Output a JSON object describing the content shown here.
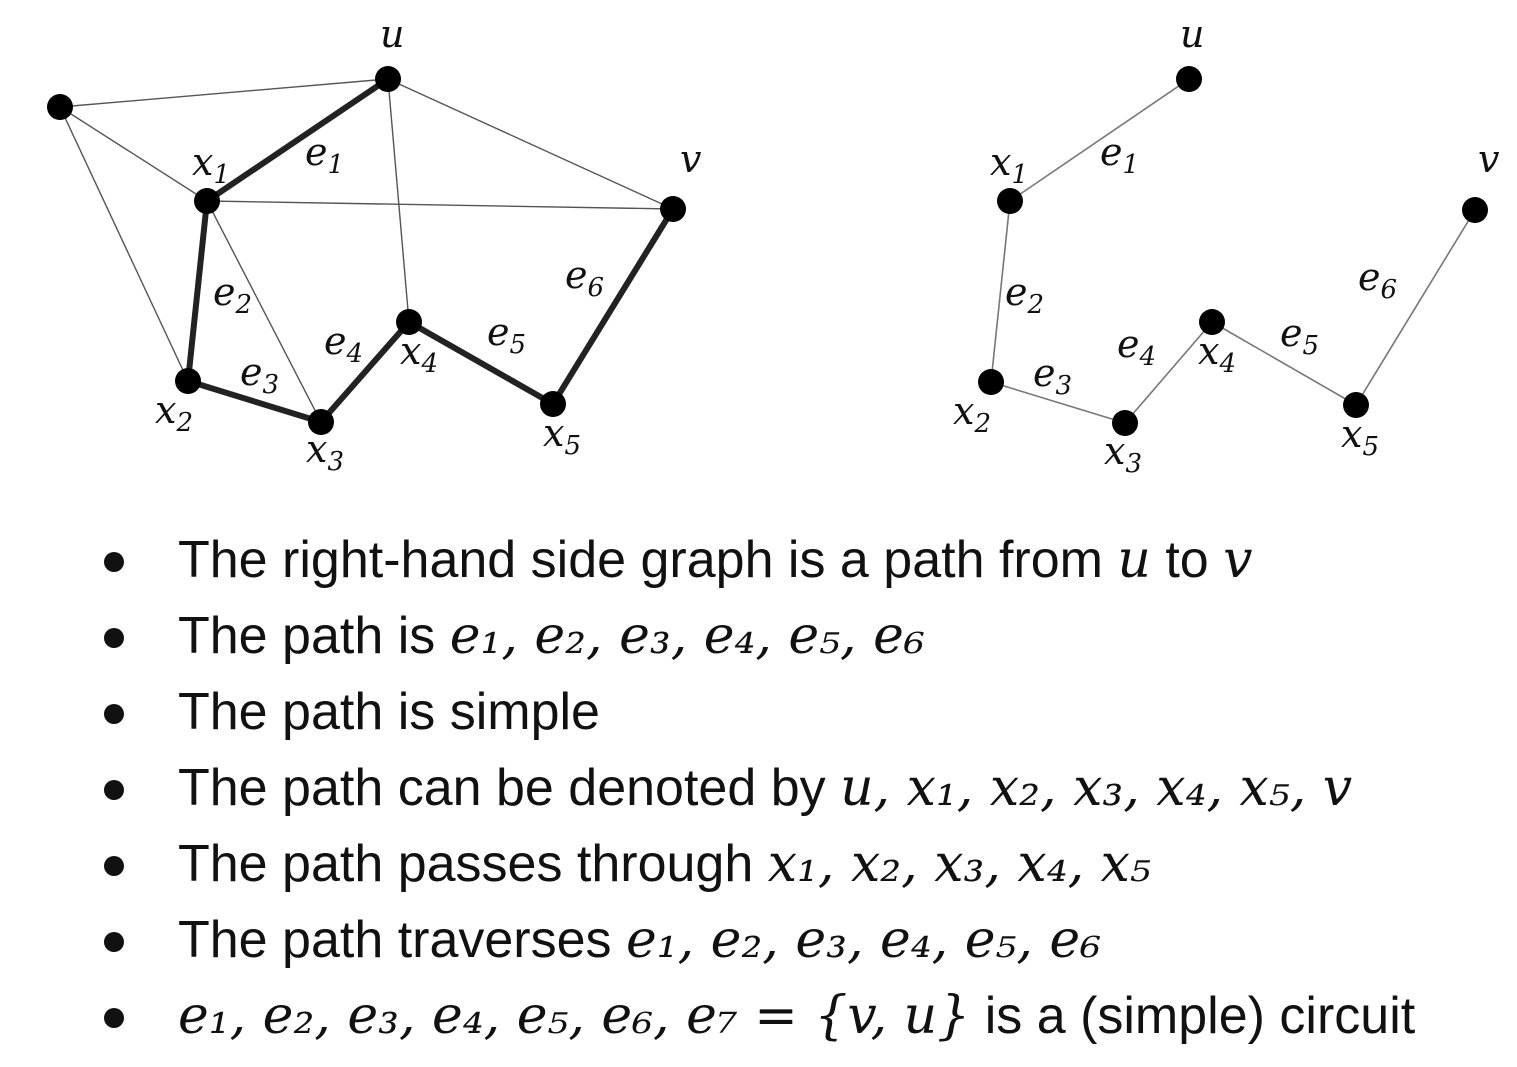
{
  "diagram": {
    "left_graph": {
      "vertex_labels": [
        {
          "id": "u",
          "text": "u",
          "sub": ""
        },
        {
          "id": "v",
          "text": "v",
          "sub": ""
        },
        {
          "id": "x1",
          "text": "x",
          "sub": "1"
        },
        {
          "id": "x2",
          "text": "x",
          "sub": "2"
        },
        {
          "id": "x3",
          "text": "x",
          "sub": "3"
        },
        {
          "id": "x4",
          "text": "x",
          "sub": "4"
        },
        {
          "id": "x5",
          "text": "x",
          "sub": "5"
        }
      ],
      "edge_labels": [
        {
          "id": "e1",
          "text": "e",
          "sub": "1"
        },
        {
          "id": "e2",
          "text": "e",
          "sub": "2"
        },
        {
          "id": "e3",
          "text": "e",
          "sub": "3"
        },
        {
          "id": "e4",
          "text": "e",
          "sub": "4"
        },
        {
          "id": "e5",
          "text": "e",
          "sub": "5"
        },
        {
          "id": "e6",
          "text": "e",
          "sub": "6"
        }
      ]
    },
    "right_graph": {
      "vertex_labels": [
        {
          "id": "u",
          "text": "u",
          "sub": ""
        },
        {
          "id": "v",
          "text": "v",
          "sub": ""
        },
        {
          "id": "x1",
          "text": "x",
          "sub": "1"
        },
        {
          "id": "x2",
          "text": "x",
          "sub": "2"
        },
        {
          "id": "x3",
          "text": "x",
          "sub": "3"
        },
        {
          "id": "x4",
          "text": "x",
          "sub": "4"
        },
        {
          "id": "x5",
          "text": "x",
          "sub": "5"
        }
      ],
      "edge_labels": [
        {
          "id": "e1",
          "text": "e",
          "sub": "1"
        },
        {
          "id": "e2",
          "text": "e",
          "sub": "2"
        },
        {
          "id": "e3",
          "text": "e",
          "sub": "3"
        },
        {
          "id": "e4",
          "text": "e",
          "sub": "4"
        },
        {
          "id": "e5",
          "text": "e",
          "sub": "5"
        },
        {
          "id": "e6",
          "text": "e",
          "sub": "6"
        }
      ]
    }
  },
  "bullets": [
    {
      "text": "The right-hand side graph is a path from ",
      "math": "u",
      "text2": " to ",
      "math2": "v"
    },
    {
      "text": "The path is ",
      "math": "e₁, e₂, e₃, e₄, e₅, e₆"
    },
    {
      "text": "The path is simple"
    },
    {
      "text": "The path can be denoted by ",
      "math": "u, x₁, x₂, x₃, x₄, x₅, v"
    },
    {
      "text": "The path passes through ",
      "math": "x₁, x₂, x₃, x₄, x₅"
    },
    {
      "text": "The path traverses ",
      "math": "e₁, e₂, e₃, e₄, e₅, e₆"
    },
    {
      "math": "e₁, e₂, e₃, e₄, e₅, e₆, e₇ = {v, u}",
      "text2": " is a (simple) circuit"
    }
  ]
}
